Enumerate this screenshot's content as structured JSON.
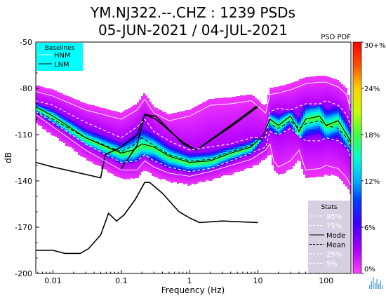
{
  "title_line1": "YM.NJ322.--.CHZ : 1239 PSDs",
  "title_line2": "05-JUN-2021 / 04-JUL-2021",
  "colorbar_label": "PSD PDF",
  "colors": {
    "baselines_box": "#00ffff",
    "stats_box": "#d7d0e2",
    "logo": "#5aa6d8"
  },
  "chart_data": {
    "type": "heatmap",
    "xlabel": "Frequency (Hz)",
    "ylabel": "dB",
    "x_scale": "log",
    "xlim": [
      0.0056,
      230
    ],
    "ylim": [
      -200,
      -50
    ],
    "x_ticks": [
      {
        "value": 0.01,
        "label": "0.01"
      },
      {
        "value": 0.1,
        "label": "0.1"
      },
      {
        "value": 1,
        "label": "1"
      },
      {
        "value": 10,
        "label": "10"
      },
      {
        "value": 100,
        "label": "100"
      }
    ],
    "y_ticks": [
      {
        "value": -50,
        "label": "-50"
      },
      {
        "value": -80,
        "label": "-80"
      },
      {
        "value": -110,
        "label": "-110"
      },
      {
        "value": -140,
        "label": "-140"
      },
      {
        "value": -170,
        "label": "-170"
      },
      {
        "value": -200,
        "label": "-200"
      }
    ],
    "colorbar": {
      "range": [
        0,
        30
      ],
      "ticks": [
        {
          "value": 30,
          "label": "30+%"
        },
        {
          "value": 24,
          "label": "24%"
        },
        {
          "value": 18,
          "label": "18%"
        },
        {
          "value": 12,
          "label": "12%"
        },
        {
          "value": 6,
          "label": "6%"
        },
        {
          "value": 0,
          "label": "0%"
        }
      ]
    },
    "baselines_legend": {
      "title": "Baselines",
      "entries": [
        {
          "label": "HNM",
          "color": "#ffffff",
          "dash": "solid"
        },
        {
          "label": "LNM",
          "color": "#000000",
          "dash": "solid"
        }
      ]
    },
    "stats_legend": {
      "title": "Stats",
      "entries": [
        {
          "label": "95%",
          "color": "#ffffff",
          "dash": "dashed"
        },
        {
          "label": "75%",
          "color": "#ffffff",
          "dash": "dashed"
        },
        {
          "label": "Mode",
          "color": "#000000",
          "dash": "solid"
        },
        {
          "label": "Mean",
          "color": "#000000",
          "dash": "dashed"
        },
        {
          "label": "25%",
          "color": "#ffffff",
          "dash": "dashed"
        },
        {
          "label": "5%",
          "color": "#ffffff",
          "dash": "dashed"
        }
      ]
    },
    "series": [
      {
        "name": "HNM",
        "x": [
          0.1,
          0.17,
          0.22,
          0.32,
          0.8,
          1.25,
          4,
          10
        ],
        "y": [
          -132,
          -117,
          -97,
          -98,
          -116,
          -120,
          -104,
          -91
        ]
      },
      {
        "name": "LNM",
        "x": [
          0.0056,
          0.01,
          0.05,
          0.058,
          0.1,
          0.17,
          0.22,
          0.32,
          0.8,
          1.25,
          4,
          10
        ],
        "y": [
          -128,
          -131,
          -138,
          -123,
          -118,
          -110,
          -97,
          -100,
          -115,
          -120,
          -105,
          -92
        ]
      },
      {
        "name": "LNM",
        "x": [
          0.0056,
          0.01,
          0.015,
          0.025,
          0.033,
          0.05,
          0.065,
          0.085,
          0.11,
          0.16,
          0.22,
          0.26,
          0.4,
          0.7,
          1.0,
          1.4,
          3.0,
          10
        ],
        "y": [
          -185,
          -185,
          -187,
          -187,
          -184,
          -175,
          -161,
          -166,
          -162,
          -152,
          -141,
          -141,
          -148,
          -160,
          -164,
          -167,
          -166,
          -167
        ]
      },
      {
        "name": "95%",
        "x": [
          0.0056,
          0.01,
          0.03,
          0.1,
          0.17,
          0.22,
          0.3,
          0.5,
          1,
          2,
          4,
          8,
          13,
          15,
          20,
          30,
          50,
          80,
          100,
          150,
          200,
          230
        ],
        "y": [
          -82,
          -85,
          -94,
          -100,
          -94,
          -87,
          -96,
          -101,
          -98,
          -91,
          -90,
          -88,
          -96,
          -84,
          -83,
          -81,
          -77,
          -76,
          -76,
          -79,
          -84,
          -95
        ]
      },
      {
        "name": "75%",
        "x": [
          0.0056,
          0.01,
          0.03,
          0.1,
          0.17,
          0.22,
          0.3,
          0.5,
          1,
          2,
          4,
          8,
          13,
          15,
          20,
          30,
          50,
          80,
          100,
          150,
          200,
          230
        ],
        "y": [
          -88,
          -91,
          -102,
          -112,
          -105,
          -100,
          -108,
          -114,
          -120,
          -118,
          -116,
          -112,
          -112,
          -95,
          -93,
          -94,
          -90,
          -90,
          -88,
          -91,
          -97,
          -105
        ]
      },
      {
        "name": "Mode",
        "x": [
          0.0056,
          0.01,
          0.03,
          0.1,
          0.15,
          0.2,
          0.3,
          0.5,
          1,
          2,
          4,
          8,
          12,
          15,
          20,
          30,
          40,
          50,
          80,
          100,
          150,
          200,
          230
        ],
        "y": [
          -92,
          -98,
          -112,
          -122,
          -120,
          -116,
          -118,
          -124,
          -128,
          -127,
          -122,
          -118,
          -110,
          -100,
          -104,
          -98,
          -108,
          -100,
          -98,
          -104,
          -101,
          -110,
          -115
        ]
      },
      {
        "name": "Mean",
        "x": [
          0.0056,
          0.01,
          0.03,
          0.1,
          0.15,
          0.2,
          0.3,
          0.5,
          1,
          2,
          4,
          8,
          12,
          15,
          20,
          30,
          40,
          50,
          80,
          100,
          150,
          200,
          230
        ],
        "y": [
          -95,
          -100,
          -112,
          -121,
          -117,
          -112,
          -117,
          -123,
          -127,
          -126,
          -121,
          -117,
          -112,
          -103,
          -106,
          -101,
          -106,
          -103,
          -101,
          -104,
          -106,
          -112,
          -118
        ]
      },
      {
        "name": "25%",
        "x": [
          0.0056,
          0.01,
          0.03,
          0.1,
          0.17,
          0.22,
          0.3,
          0.5,
          1,
          2,
          4,
          8,
          13,
          15,
          20,
          30,
          50,
          80,
          100,
          150,
          200,
          230
        ],
        "y": [
          -95,
          -102,
          -116,
          -128,
          -127,
          -123,
          -127,
          -131,
          -134,
          -132,
          -127,
          -122,
          -118,
          -108,
          -110,
          -106,
          -114,
          -114,
          -112,
          -114,
          -118,
          -125
        ]
      },
      {
        "name": "5%",
        "x": [
          0.0056,
          0.01,
          0.03,
          0.1,
          0.17,
          0.22,
          0.3,
          0.5,
          1,
          2,
          4,
          8,
          13,
          15,
          17,
          20,
          30,
          40,
          50,
          80,
          100,
          150,
          200,
          230
        ],
        "y": [
          -97,
          -105,
          -120,
          -133,
          -133,
          -127,
          -131,
          -135,
          -137,
          -134,
          -130,
          -126,
          -120,
          -116,
          -127,
          -131,
          -127,
          -120,
          -133,
          -132,
          -130,
          -132,
          -138,
          -143
        ]
      }
    ]
  }
}
